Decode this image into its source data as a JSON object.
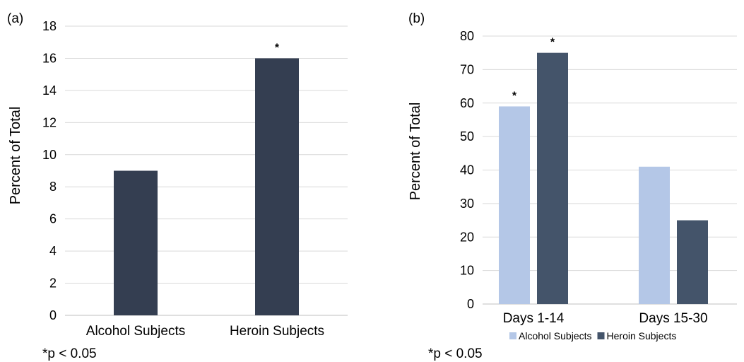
{
  "chart_data": [
    {
      "panel_label": "(a)",
      "type": "bar",
      "categories": [
        "Alcohol Subjects",
        "Heroin Subjects"
      ],
      "series": [
        {
          "values": [
            9,
            16
          ],
          "color": "#343e51"
        }
      ],
      "annotations": [
        "",
        "*"
      ],
      "ylabel": "Percent of Total",
      "ylim": [
        0,
        18
      ],
      "yticks": [
        0,
        2,
        4,
        6,
        8,
        10,
        12,
        14,
        16,
        18
      ],
      "grid": true,
      "footnote": "*p < 0.05"
    },
    {
      "panel_label": "(b)",
      "type": "bar",
      "categories": [
        "Days 1-14",
        "Days 15-30"
      ],
      "series": [
        {
          "name": "Alcohol Subjects",
          "values": [
            59,
            41
          ],
          "color": "#b4c7e7",
          "annotations": [
            "*",
            ""
          ]
        },
        {
          "name": "Heroin Subjects",
          "values": [
            75,
            25
          ],
          "color": "#44546a",
          "annotations": [
            "*",
            ""
          ]
        }
      ],
      "ylabel": "Percent of Total",
      "ylim": [
        0,
        80
      ],
      "yticks": [
        0,
        10,
        20,
        30,
        40,
        50,
        60,
        70,
        80
      ],
      "grid": true,
      "legend_position": "bottom",
      "footnote": "*p < 0.05"
    }
  ]
}
